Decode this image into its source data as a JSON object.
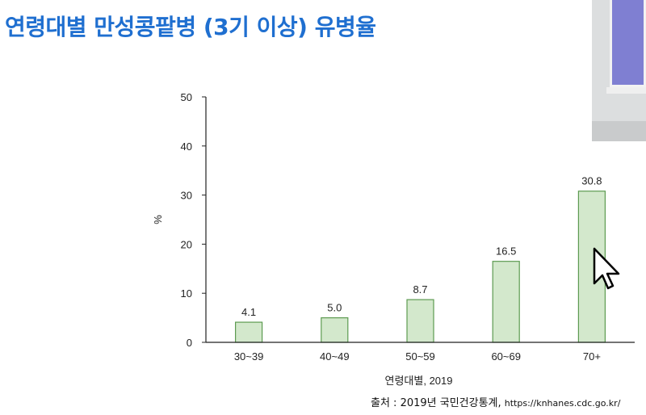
{
  "slide": {
    "title": "연령대별 만성콩팥병 (3기 이상) 유병율",
    "source_prefix": "출처 : 2019년 국민건강통계, ",
    "source_url": "https://knhanes.cdc.go.kr/"
  },
  "colors": {
    "title": "#1f6fd0",
    "bar_fill": "#d3e8cc",
    "bar_stroke": "#5d9b51",
    "axis": "#222222"
  },
  "icons": {
    "cursor": "mouse-pointer-icon"
  },
  "chart_data": {
    "type": "bar",
    "title": "",
    "xlabel": "연령대별, 2019",
    "ylabel": "%",
    "categories": [
      "30~39",
      "40~49",
      "50~59",
      "60~69",
      "70+"
    ],
    "values": [
      4.1,
      5.0,
      8.7,
      16.5,
      30.8
    ],
    "data_labels": [
      "4.1",
      "5.0",
      "8.7",
      "16.5",
      "30.8"
    ],
    "yticks": [
      0,
      10,
      20,
      30,
      40,
      50
    ],
    "ylim": [
      0,
      50
    ],
    "grid": false,
    "legend": "none"
  }
}
